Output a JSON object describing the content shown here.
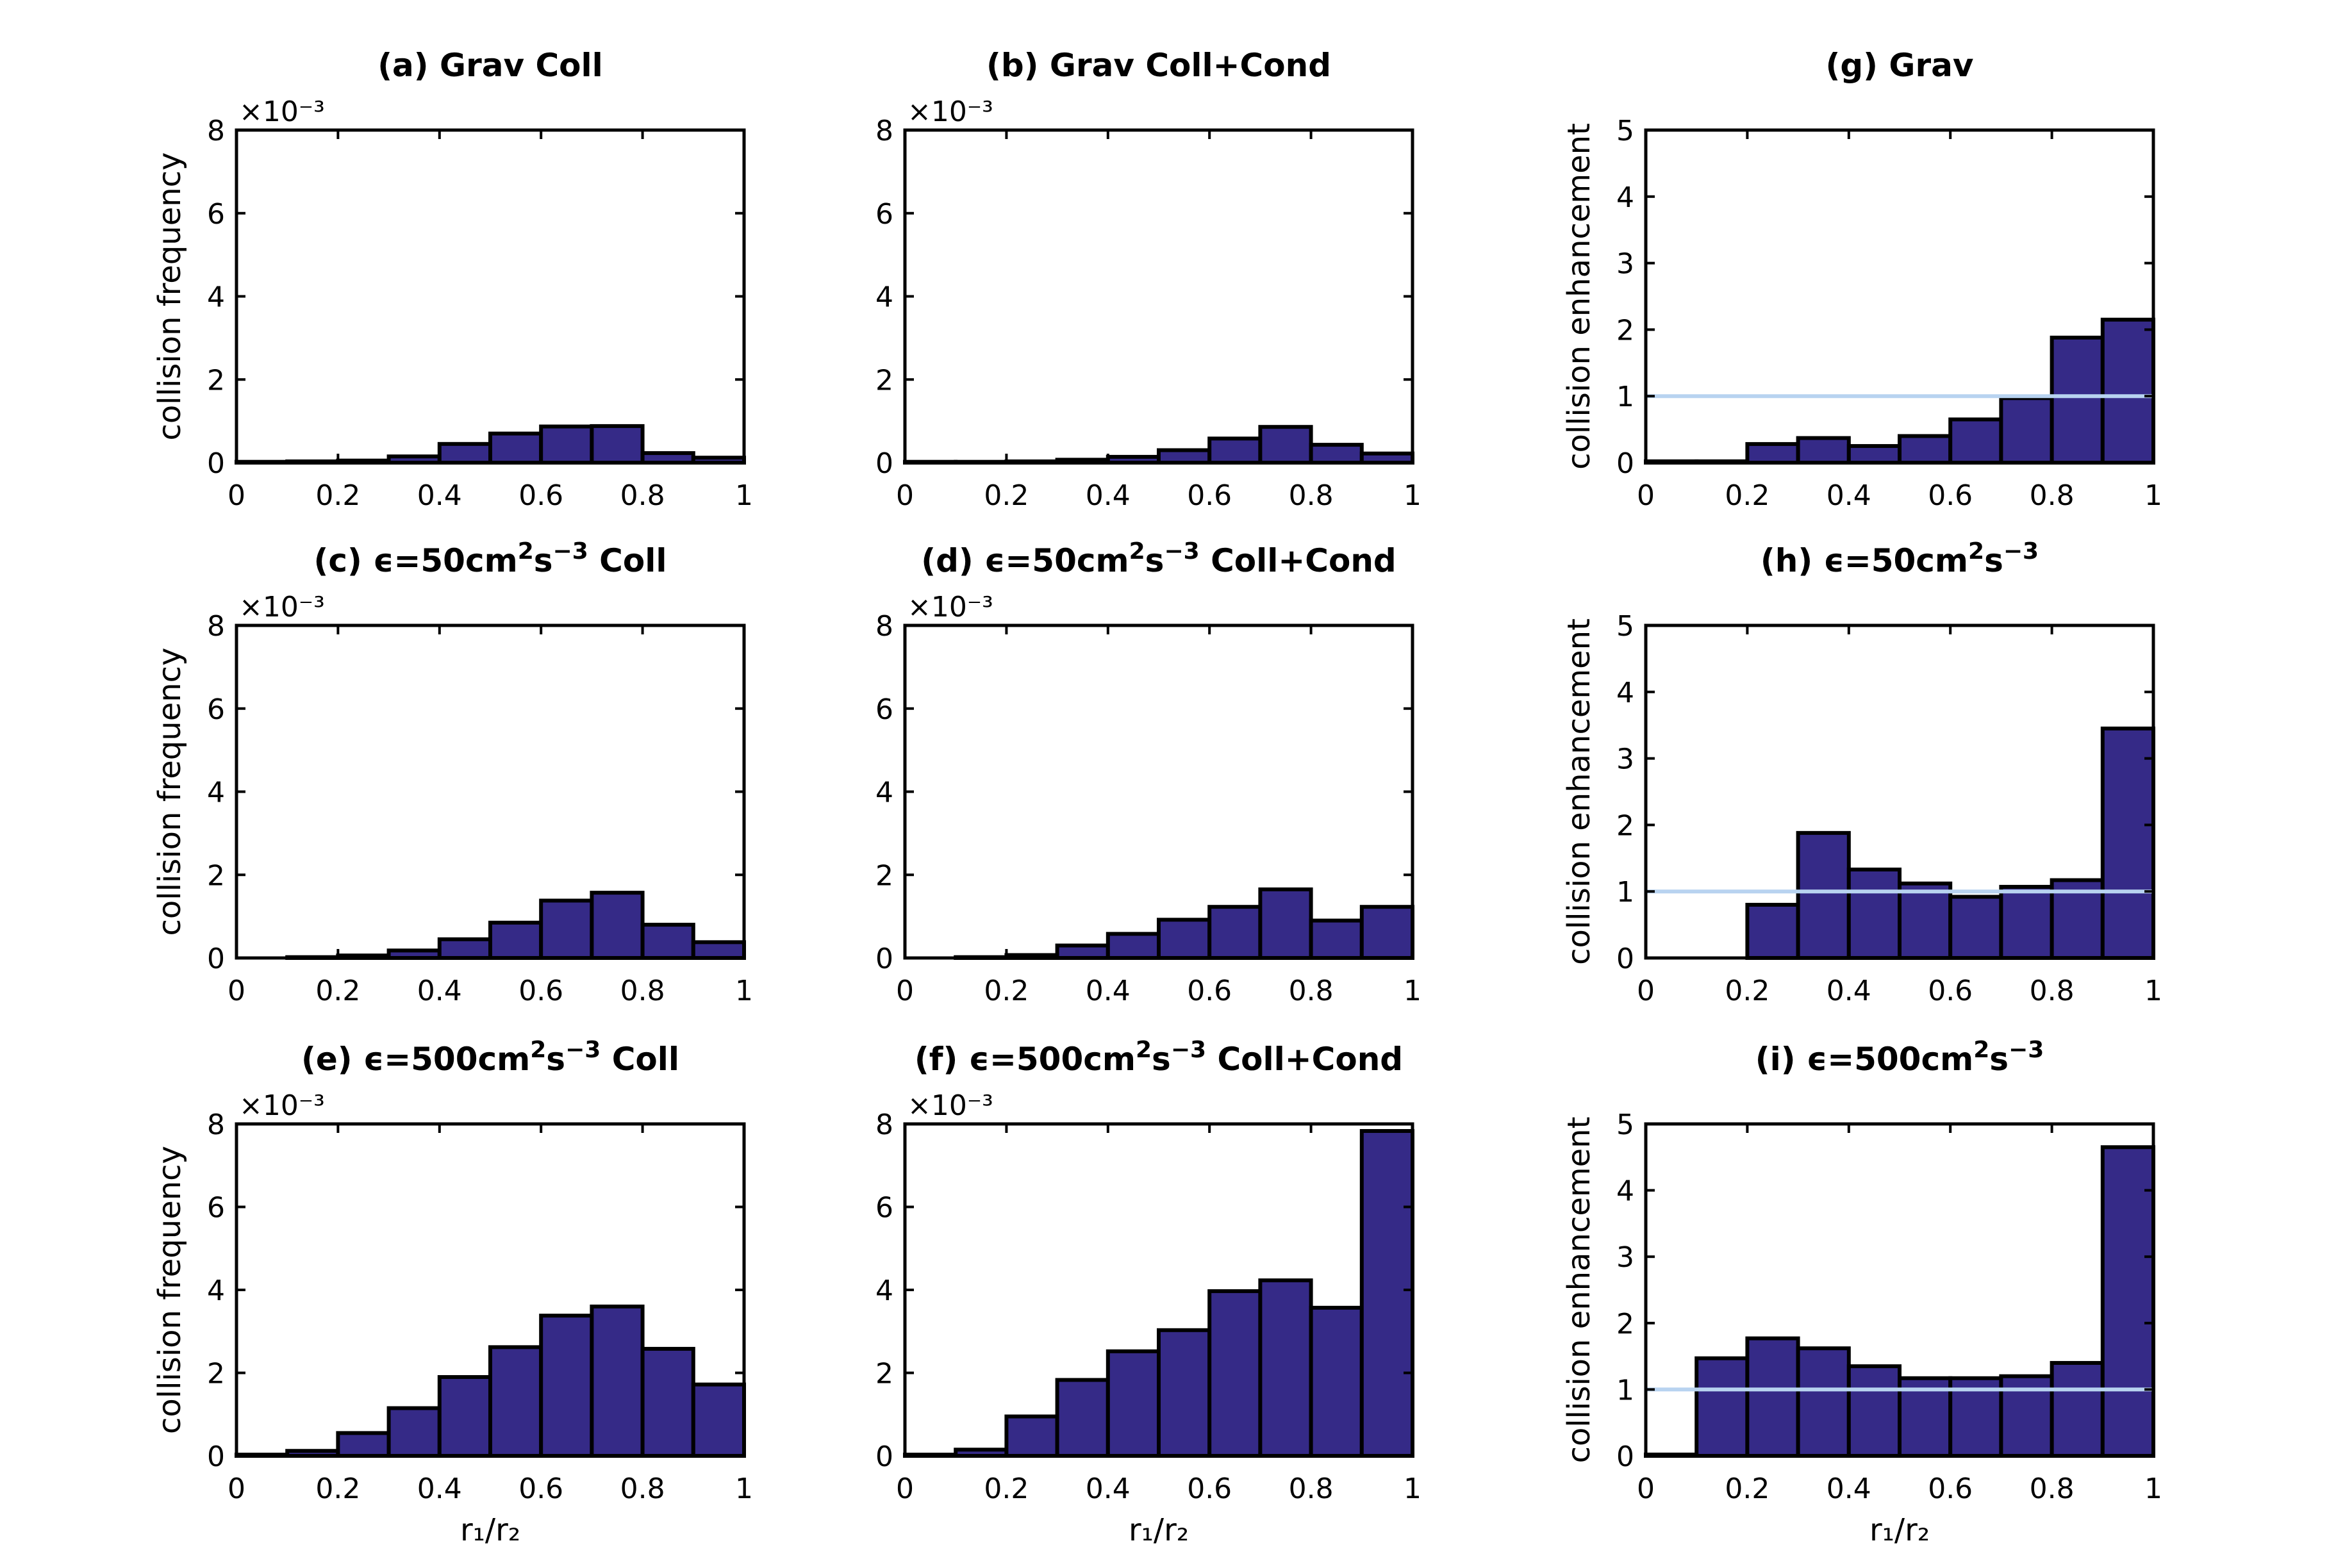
{
  "figure": {
    "bar_color": "#352a87",
    "bar_edge_color": "#000000",
    "ref_line_color": "#b8d3f0",
    "ylabel_freq": "collision frequency",
    "ylabel_enh": "collision enhancement",
    "exponent": "×10⁻³"
  },
  "chart_data": [
    {
      "id": "a",
      "type": "bar",
      "title": "(a) Grav Coll",
      "ylabel": "collision frequency",
      "xlabel": "",
      "xlim": [
        0,
        1
      ],
      "ylim": [
        0,
        8
      ],
      "scale_exponent": "×10⁻³",
      "bin_edges": [
        0,
        0.1,
        0.2,
        0.3,
        0.4,
        0.5,
        0.6,
        0.7,
        0.8,
        0.9,
        1.0
      ],
      "values": [
        0.02,
        0.03,
        0.05,
        0.15,
        0.45,
        0.7,
        0.87,
        0.88,
        0.23,
        0.12
      ]
    },
    {
      "id": "b",
      "type": "bar",
      "title": "(b) Grav Coll+Cond",
      "ylabel": "",
      "xlabel": "",
      "xlim": [
        0,
        1
      ],
      "ylim": [
        0,
        8
      ],
      "scale_exponent": "×10⁻³",
      "bin_edges": [
        0,
        0.1,
        0.2,
        0.3,
        0.4,
        0.5,
        0.6,
        0.7,
        0.8,
        0.9,
        1.0
      ],
      "values": [
        0.02,
        0.02,
        0.03,
        0.07,
        0.14,
        0.3,
        0.58,
        0.86,
        0.43,
        0.22
      ]
    },
    {
      "id": "g",
      "type": "bar",
      "title": "(g) Grav",
      "ylabel": "collision enhancement",
      "xlabel": "",
      "xlim": [
        0,
        1
      ],
      "ylim": [
        0,
        5
      ],
      "reference_line": 1,
      "bin_edges": [
        0,
        0.1,
        0.2,
        0.3,
        0.4,
        0.5,
        0.6,
        0.7,
        0.8,
        0.9,
        1.0
      ],
      "values": [
        0.02,
        0.02,
        0.28,
        0.37,
        0.25,
        0.4,
        0.65,
        0.97,
        1.88,
        2.15
      ]
    },
    {
      "id": "c",
      "type": "bar",
      "title": "(c) ϵ=50cm²s⁻³ Coll",
      "ylabel": "collision frequency",
      "xlabel": "",
      "xlim": [
        0,
        1
      ],
      "ylim": [
        0,
        8
      ],
      "scale_exponent": "×10⁻³",
      "bin_edges": [
        0,
        0.1,
        0.2,
        0.3,
        0.4,
        0.5,
        0.6,
        0.7,
        0.8,
        0.9,
        1.0
      ],
      "values": [
        0.0,
        0.02,
        0.06,
        0.18,
        0.45,
        0.85,
        1.38,
        1.57,
        0.8,
        0.38
      ]
    },
    {
      "id": "d",
      "type": "bar",
      "title": "(d) ϵ=50cm²s⁻³ Coll+Cond",
      "ylabel": "",
      "xlabel": "",
      "xlim": [
        0,
        1
      ],
      "ylim": [
        0,
        8
      ],
      "scale_exponent": "×10⁻³",
      "bin_edges": [
        0,
        0.1,
        0.2,
        0.3,
        0.4,
        0.5,
        0.6,
        0.7,
        0.8,
        0.9,
        1.0
      ],
      "values": [
        0.0,
        0.02,
        0.07,
        0.3,
        0.58,
        0.92,
        1.23,
        1.65,
        0.9,
        1.23
      ]
    },
    {
      "id": "h",
      "type": "bar",
      "title": "(h) ϵ=50cm²s⁻³",
      "ylabel": "collision enhancement",
      "xlabel": "",
      "xlim": [
        0,
        1
      ],
      "ylim": [
        0,
        5
      ],
      "reference_line": 1,
      "bin_edges": [
        0,
        0.1,
        0.2,
        0.3,
        0.4,
        0.5,
        0.6,
        0.7,
        0.8,
        0.9,
        1.0
      ],
      "values": [
        0.0,
        0.0,
        0.8,
        1.88,
        1.33,
        1.12,
        0.92,
        1.07,
        1.17,
        3.45
      ]
    },
    {
      "id": "e",
      "type": "bar",
      "title": "(e) ϵ=500cm²s⁻³ Coll",
      "ylabel": "collision frequency",
      "xlabel": "r₁/r₂",
      "xlim": [
        0,
        1
      ],
      "ylim": [
        0,
        8
      ],
      "scale_exponent": "×10⁻³",
      "bin_edges": [
        0,
        0.1,
        0.2,
        0.3,
        0.4,
        0.5,
        0.6,
        0.7,
        0.8,
        0.9,
        1.0
      ],
      "values": [
        0.03,
        0.12,
        0.55,
        1.15,
        1.9,
        2.62,
        3.38,
        3.6,
        2.58,
        1.72
      ]
    },
    {
      "id": "f",
      "type": "bar",
      "title": "(f) ϵ=500cm²s⁻³ Coll+Cond",
      "ylabel": "",
      "xlabel": "r₁/r₂",
      "xlim": [
        0,
        1
      ],
      "ylim": [
        0,
        8
      ],
      "scale_exponent": "×10⁻³",
      "bin_edges": [
        0,
        0.1,
        0.2,
        0.3,
        0.4,
        0.5,
        0.6,
        0.7,
        0.8,
        0.9,
        1.0
      ],
      "values": [
        0.03,
        0.15,
        0.95,
        1.83,
        2.52,
        3.03,
        3.97,
        4.23,
        3.57,
        7.83
      ]
    },
    {
      "id": "i",
      "type": "bar",
      "title": "(i) ϵ=500cm²s⁻³",
      "ylabel": "collision enhancement",
      "xlabel": "r₁/r₂",
      "xlim": [
        0,
        1
      ],
      "ylim": [
        0,
        5
      ],
      "reference_line": 1,
      "bin_edges": [
        0,
        0.1,
        0.2,
        0.3,
        0.4,
        0.5,
        0.6,
        0.7,
        0.8,
        0.9,
        1.0
      ],
      "values": [
        0.02,
        1.47,
        1.77,
        1.62,
        1.35,
        1.17,
        1.17,
        1.2,
        1.4,
        4.65
      ]
    }
  ]
}
